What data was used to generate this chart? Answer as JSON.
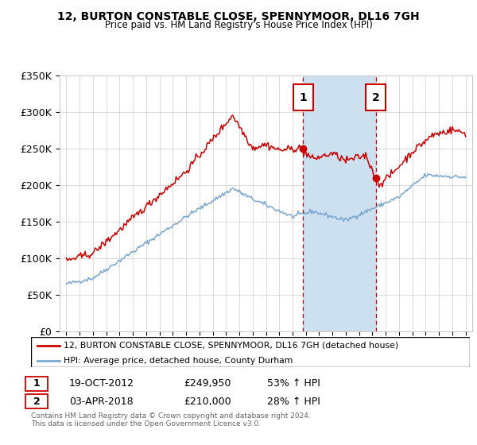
{
  "title": "12, BURTON CONSTABLE CLOSE, SPENNYMOOR, DL16 7GH",
  "subtitle": "Price paid vs. HM Land Registry's House Price Index (HPI)",
  "legend_line1": "12, BURTON CONSTABLE CLOSE, SPENNYMOOR, DL16 7GH (detached house)",
  "legend_line2": "HPI: Average price, detached house, County Durham",
  "footer1": "Contains HM Land Registry data © Crown copyright and database right 2024.",
  "footer2": "This data is licensed under the Open Government Licence v3.0.",
  "sale1_label": "1",
  "sale1_date": "19-OCT-2012",
  "sale1_price": "£249,950",
  "sale1_hpi": "53% ↑ HPI",
  "sale1_x": 2012.8,
  "sale1_y": 249950,
  "sale2_label": "2",
  "sale2_date": "03-APR-2018",
  "sale2_price": "£210,000",
  "sale2_hpi": "28% ↑ HPI",
  "sale2_x": 2018.25,
  "sale2_y": 210000,
  "shade_x1": 2012.8,
  "shade_x2": 2018.25,
  "ylim": [
    0,
    350000
  ],
  "xlim": [
    1994.5,
    2025.5
  ],
  "yticks": [
    0,
    50000,
    100000,
    150000,
    200000,
    250000,
    300000,
    350000
  ],
  "ytick_labels": [
    "£0",
    "£50K",
    "£100K",
    "£150K",
    "£200K",
    "£250K",
    "£300K",
    "£350K"
  ],
  "xticks": [
    1995,
    1996,
    1997,
    1998,
    1999,
    2000,
    2001,
    2002,
    2003,
    2004,
    2005,
    2006,
    2007,
    2008,
    2009,
    2010,
    2011,
    2012,
    2013,
    2014,
    2015,
    2016,
    2017,
    2018,
    2019,
    2020,
    2021,
    2022,
    2023,
    2024,
    2025
  ],
  "red_color": "#cc0000",
  "blue_color": "#7aa8d2",
  "shade_color": "#cce0f0",
  "bg_color": "#ffffff",
  "grid_color": "#cccccc"
}
